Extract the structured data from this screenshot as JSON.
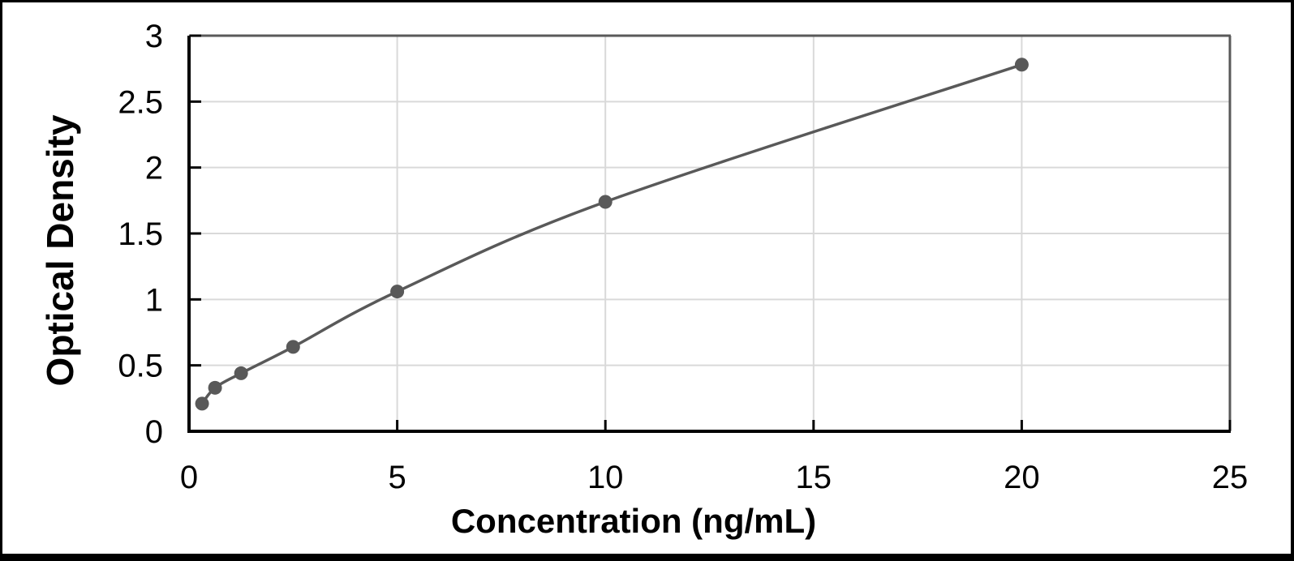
{
  "chart_data": {
    "type": "scatter",
    "xlabel": "Concentration (ng/mL)",
    "ylabel": "Optical Density",
    "x": [
      0.313,
      0.625,
      1.25,
      2.5,
      5,
      10,
      20
    ],
    "y": [
      0.21,
      0.33,
      0.44,
      0.64,
      1.06,
      1.74,
      2.78
    ],
    "xlim": [
      0,
      25
    ],
    "ylim": [
      0,
      3
    ],
    "x_tick_labels": [
      "0",
      "5",
      "10",
      "15",
      "20",
      "25"
    ],
    "y_tick_labels": [
      "0",
      "0.5",
      "1",
      "1.5",
      "2",
      "2.5",
      "3"
    ],
    "grid": true,
    "legend": "none",
    "line_style": "smooth",
    "marker": "circle",
    "colors": {
      "series": "#595959",
      "gridline": "#d9d9d9",
      "axis_line": "#000000",
      "plot_border": "#595959",
      "text": "#000000",
      "frame": "#000000",
      "background": "#ffffff"
    }
  }
}
